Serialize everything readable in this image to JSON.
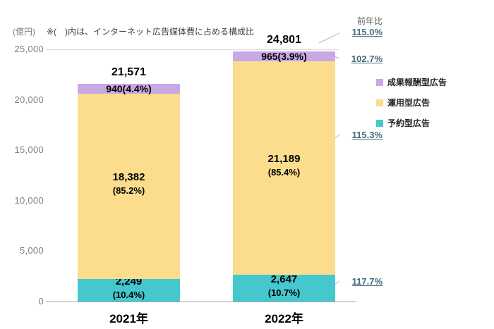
{
  "chart_data": {
    "type": "bar",
    "stacked": true,
    "unit_label": "(億円)",
    "note": "※(　)内は、インターネット広告媒体費に占める構成比",
    "categories": [
      "2021年",
      "2022年"
    ],
    "totals": [
      "21,571",
      "24,801"
    ],
    "series": [
      {
        "name": "予約型広告",
        "color": "#45C7CE",
        "values": [
          2249,
          2647
        ],
        "labels": [
          "2,249",
          "2,647"
        ],
        "pct_labels": [
          "(10.4%)",
          "(10.7%)"
        ]
      },
      {
        "name": "運用型広告",
        "color": "#FBDD8D",
        "values": [
          18382,
          21189
        ],
        "labels": [
          "18,382",
          "21,189"
        ],
        "pct_labels": [
          "(85.2%)",
          "(85.4%)"
        ]
      },
      {
        "name": "成果報酬型広告",
        "color": "#C9A8E6",
        "values": [
          940,
          965
        ],
        "labels": [
          "940(4.4%)",
          "965(3.9%)"
        ],
        "pct_labels": [
          "",
          ""
        ]
      }
    ],
    "ylim": [
      0,
      25000
    ],
    "y_ticks": [
      "0",
      "5,000",
      "10,000",
      "15,000",
      "20,000",
      "25,000"
    ],
    "legend": [
      {
        "label": "成果報酬型広告",
        "color": "#C9A8E6"
      },
      {
        "label": "運用型広告",
        "color": "#FBDD8D"
      },
      {
        "label": "予約型広告",
        "color": "#45C7CE"
      }
    ],
    "yoy": {
      "header": "前年比",
      "color": "#44697B",
      "values": [
        "115.0%",
        "102.7%",
        "115.3%",
        "117.7%"
      ]
    }
  }
}
